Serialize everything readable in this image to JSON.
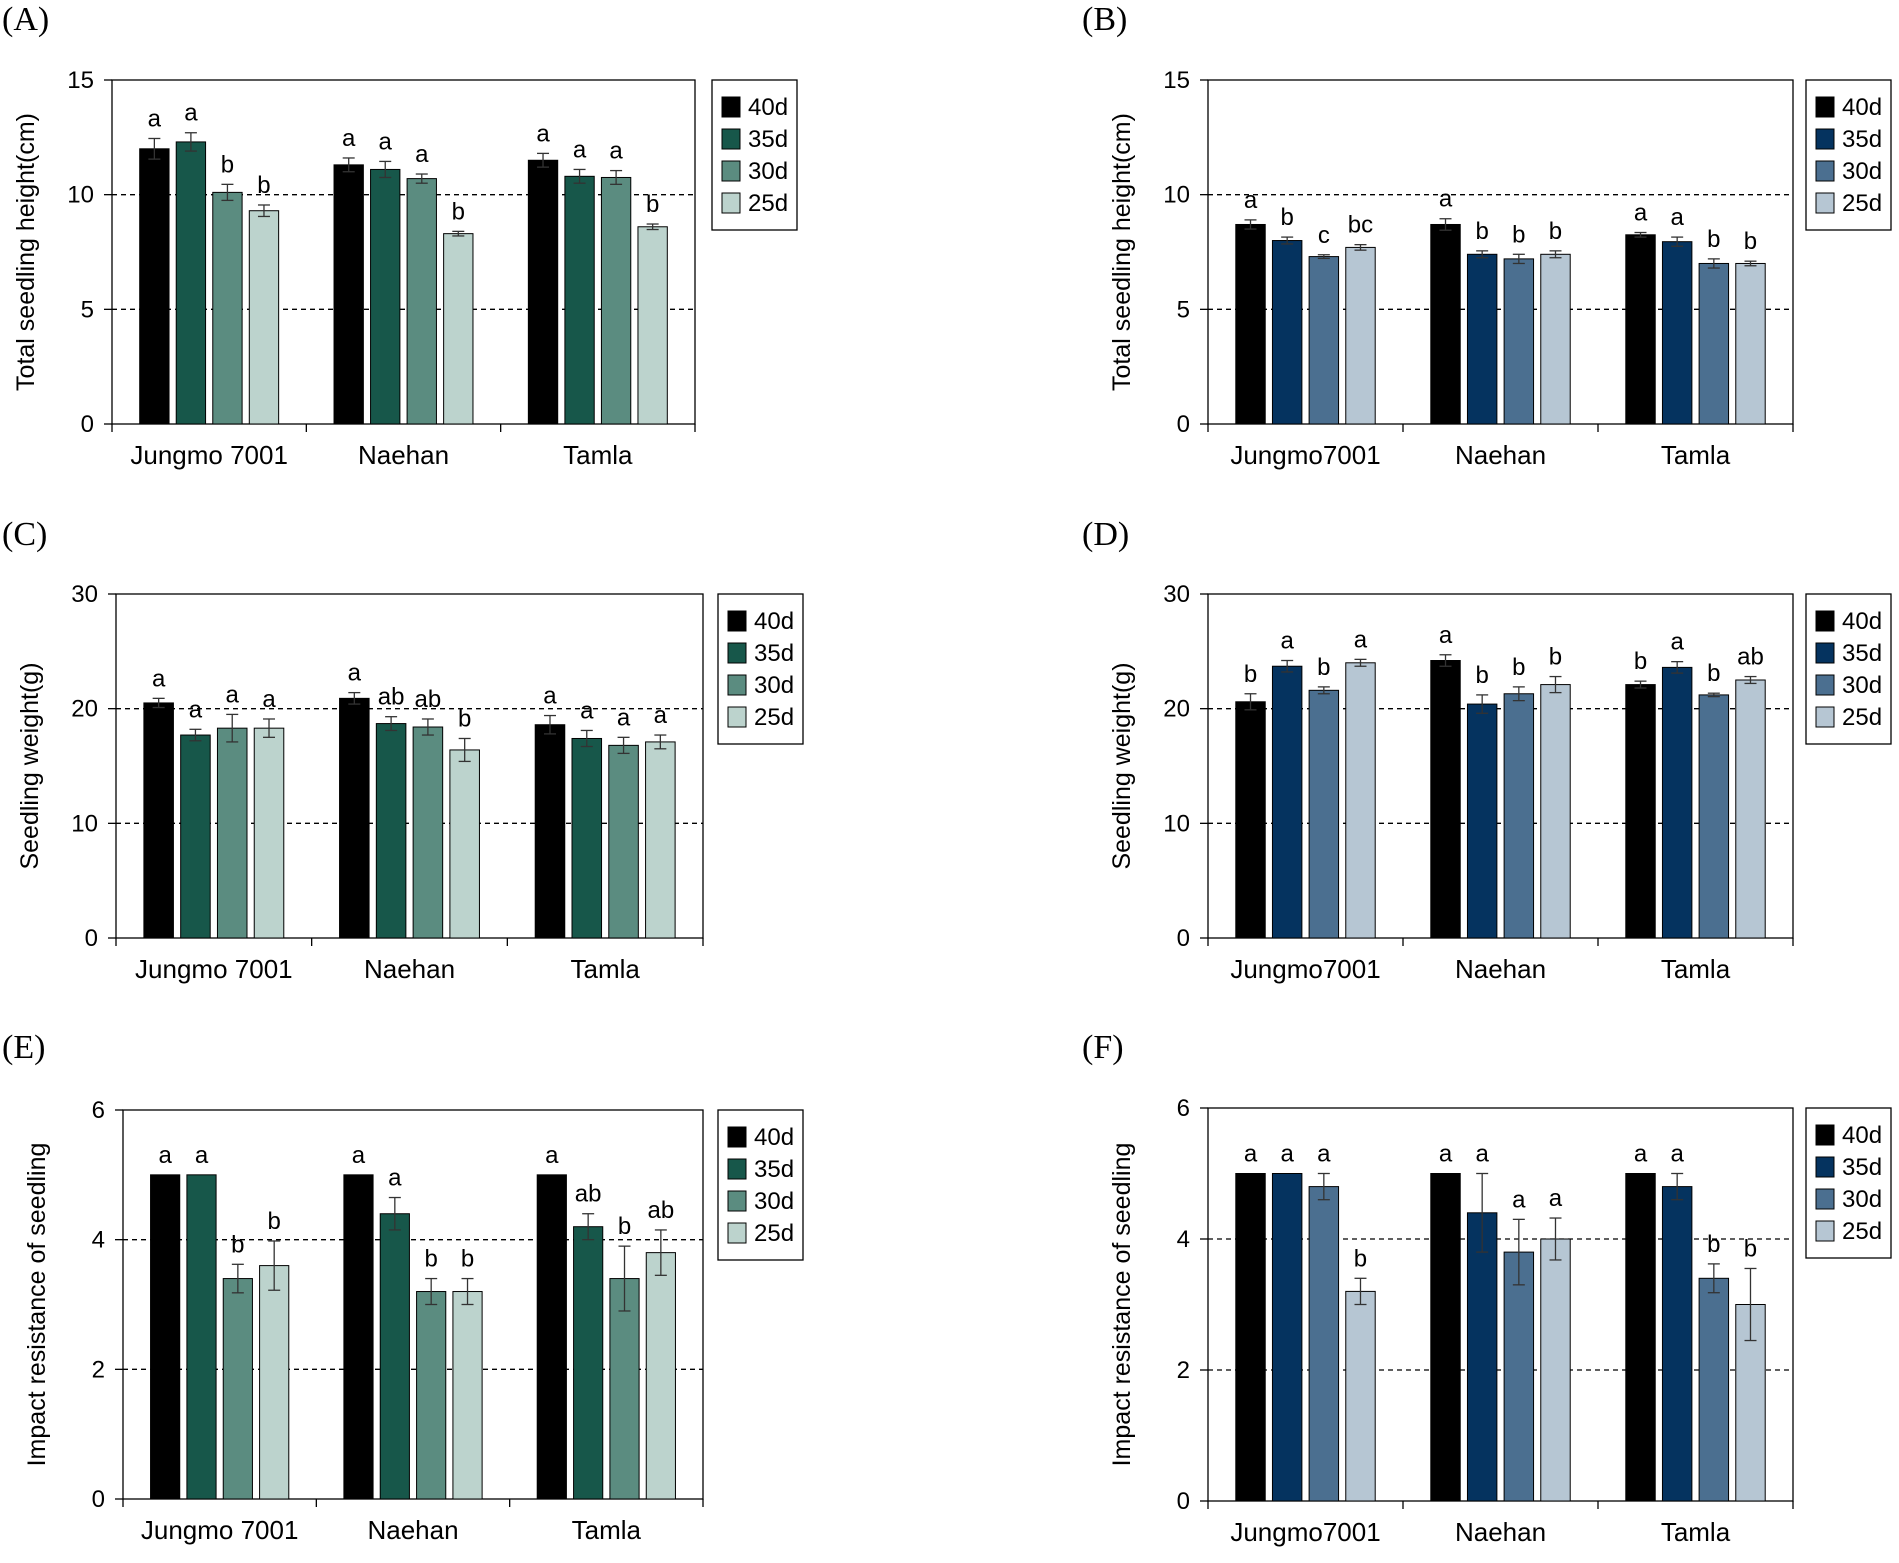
{
  "legend_entries": [
    "40d",
    "35d",
    "30d",
    "25d"
  ],
  "palettes": {
    "green": [
      "#000000",
      "#17574a",
      "#5b8c80",
      "#bcd3cd"
    ],
    "blue": [
      "#000000",
      "#05335f",
      "#4b6f90",
      "#b6c6d3"
    ]
  },
  "chart_data": [
    {
      "panel": "(A)",
      "type": "bar",
      "palette": "green",
      "title": "",
      "xlabel": "",
      "ylabel": "Total seedling height(cm)",
      "ylim": [
        0,
        15
      ],
      "yticks": [
        0,
        5,
        10,
        15
      ],
      "grid_lines": [
        5,
        10
      ],
      "categories": [
        "Jungmo 7001",
        "Naehan",
        "Tamla"
      ],
      "series": [
        {
          "name": "40d",
          "values": [
            12.0,
            11.3,
            11.5
          ],
          "errors": [
            0.45,
            0.3,
            0.3
          ],
          "letters": [
            "a",
            "a",
            "a"
          ]
        },
        {
          "name": "35d",
          "values": [
            12.3,
            11.1,
            10.8
          ],
          "errors": [
            0.4,
            0.35,
            0.3
          ],
          "letters": [
            "a",
            "a",
            "a"
          ]
        },
        {
          "name": "30d",
          "values": [
            10.1,
            10.7,
            10.75
          ],
          "errors": [
            0.35,
            0.2,
            0.3
          ],
          "letters": [
            "b",
            "a",
            "a"
          ]
        },
        {
          "name": "25d",
          "values": [
            9.3,
            8.3,
            8.6
          ],
          "errors": [
            0.25,
            0.1,
            0.12
          ],
          "letters": [
            "b",
            "b",
            "b"
          ]
        }
      ]
    },
    {
      "panel": "(B)",
      "type": "bar",
      "palette": "blue",
      "title": "",
      "xlabel": "",
      "ylabel": "Total seedling height(cm)",
      "ylim": [
        0,
        15
      ],
      "yticks": [
        0,
        5,
        10,
        15
      ],
      "grid_lines": [
        5,
        10
      ],
      "categories": [
        "Jungmo7001",
        "Naehan",
        "Tamla"
      ],
      "series": [
        {
          "name": "40d",
          "values": [
            8.7,
            8.7,
            8.25
          ],
          "errors": [
            0.2,
            0.25,
            0.1
          ],
          "letters": [
            "a",
            "a",
            "a"
          ]
        },
        {
          "name": "35d",
          "values": [
            8.0,
            7.4,
            7.95
          ],
          "errors": [
            0.15,
            0.15,
            0.2
          ],
          "letters": [
            "b",
            "b",
            "a"
          ]
        },
        {
          "name": "30d",
          "values": [
            7.3,
            7.2,
            7.0
          ],
          "errors": [
            0.08,
            0.2,
            0.2
          ],
          "letters": [
            "c",
            "b",
            "b"
          ]
        },
        {
          "name": "25d",
          "values": [
            7.7,
            7.4,
            7.0
          ],
          "errors": [
            0.12,
            0.15,
            0.1
          ],
          "letters": [
            "bc",
            "b",
            "b"
          ]
        }
      ]
    },
    {
      "panel": "(C)",
      "type": "bar",
      "palette": "green",
      "title": "",
      "xlabel": "",
      "ylabel": "Seedling weight(g)",
      "ylim": [
        0,
        30
      ],
      "yticks": [
        0,
        10,
        20,
        30
      ],
      "grid_lines": [
        10,
        20
      ],
      "categories": [
        "Jungmo 7001",
        "Naehan",
        "Tamla"
      ],
      "series": [
        {
          "name": "40d",
          "values": [
            20.5,
            20.9,
            18.6
          ],
          "errors": [
            0.4,
            0.5,
            0.8
          ],
          "letters": [
            "a",
            "a",
            "a"
          ]
        },
        {
          "name": "35d",
          "values": [
            17.7,
            18.7,
            17.4
          ],
          "errors": [
            0.5,
            0.6,
            0.7
          ],
          "letters": [
            "a",
            "ab",
            "a"
          ]
        },
        {
          "name": "30d",
          "values": [
            18.3,
            18.4,
            16.8
          ],
          "errors": [
            1.2,
            0.7,
            0.7
          ],
          "letters": [
            "a",
            "ab",
            "a"
          ]
        },
        {
          "name": "25d",
          "values": [
            18.3,
            16.4,
            17.1
          ],
          "errors": [
            0.8,
            1.0,
            0.6
          ],
          "letters": [
            "a",
            "b",
            "a"
          ]
        }
      ]
    },
    {
      "panel": "(D)",
      "type": "bar",
      "palette": "blue",
      "title": "",
      "xlabel": "",
      "ylabel": "Seedling weight(g)",
      "ylim": [
        0,
        30
      ],
      "yticks": [
        0,
        10,
        20,
        30
      ],
      "grid_lines": [
        10,
        20
      ],
      "categories": [
        "Jungmo7001",
        "Naehan",
        "Tamla"
      ],
      "series": [
        {
          "name": "40d",
          "values": [
            20.6,
            24.2,
            22.1
          ],
          "errors": [
            0.7,
            0.5,
            0.3
          ],
          "letters": [
            "b",
            "a",
            "b"
          ]
        },
        {
          "name": "35d",
          "values": [
            23.7,
            20.4,
            23.6
          ],
          "errors": [
            0.5,
            0.8,
            0.5
          ],
          "letters": [
            "a",
            "b",
            "a"
          ]
        },
        {
          "name": "30d",
          "values": [
            21.6,
            21.3,
            21.2
          ],
          "errors": [
            0.3,
            0.6,
            0.15
          ],
          "letters": [
            "b",
            "b",
            "b"
          ]
        },
        {
          "name": "25d",
          "values": [
            24.0,
            22.1,
            22.5
          ],
          "errors": [
            0.3,
            0.7,
            0.3
          ],
          "letters": [
            "a",
            "b",
            "ab"
          ]
        }
      ]
    },
    {
      "panel": "(E)",
      "type": "bar",
      "palette": "green",
      "title": "",
      "xlabel": "",
      "ylabel": "Impact resistance of seedling",
      "ylim": [
        0,
        6
      ],
      "yticks": [
        0,
        2,
        4,
        6
      ],
      "grid_lines": [
        2,
        4
      ],
      "categories": [
        "Jungmo 7001",
        "Naehan",
        "Tamla"
      ],
      "series": [
        {
          "name": "40d",
          "values": [
            5.0,
            5.0,
            5.0
          ],
          "errors": [
            0,
            0,
            0
          ],
          "letters": [
            "a",
            "a",
            "a"
          ]
        },
        {
          "name": "35d",
          "values": [
            5.0,
            4.4,
            4.2
          ],
          "errors": [
            0,
            0.25,
            0.2
          ],
          "letters": [
            "a",
            "a",
            "ab"
          ]
        },
        {
          "name": "30d",
          "values": [
            3.4,
            3.2,
            3.4
          ],
          "errors": [
            0.22,
            0.2,
            0.5
          ],
          "letters": [
            "b",
            "b",
            "b"
          ]
        },
        {
          "name": "25d",
          "values": [
            3.6,
            3.2,
            3.8
          ],
          "errors": [
            0.38,
            0.2,
            0.35
          ],
          "letters": [
            "b",
            "b",
            "ab"
          ]
        }
      ]
    },
    {
      "panel": "(F)",
      "type": "bar",
      "palette": "blue",
      "title": "",
      "xlabel": "",
      "ylabel": "Impact resistance of seedling",
      "ylim": [
        0,
        6
      ],
      "yticks": [
        0,
        2,
        4,
        6
      ],
      "grid_lines": [
        2,
        4
      ],
      "categories": [
        "Jungmo7001",
        "Naehan",
        "Tamla"
      ],
      "series": [
        {
          "name": "40d",
          "values": [
            5.0,
            5.0,
            5.0
          ],
          "errors": [
            0,
            0,
            0
          ],
          "letters": [
            "a",
            "a",
            "a"
          ]
        },
        {
          "name": "35d",
          "values": [
            5.0,
            4.4,
            4.8
          ],
          "errors": [
            0,
            0.6,
            0.2
          ],
          "letters": [
            "a",
            "a",
            "a"
          ]
        },
        {
          "name": "30d",
          "values": [
            4.8,
            3.8,
            3.4
          ],
          "errors": [
            0.2,
            0.5,
            0.22
          ],
          "letters": [
            "a",
            "a",
            "b"
          ]
        },
        {
          "name": "25d",
          "values": [
            3.2,
            4.0,
            3.0
          ],
          "errors": [
            0.2,
            0.32,
            0.55
          ],
          "letters": [
            "b",
            "a",
            "b"
          ]
        }
      ]
    }
  ]
}
